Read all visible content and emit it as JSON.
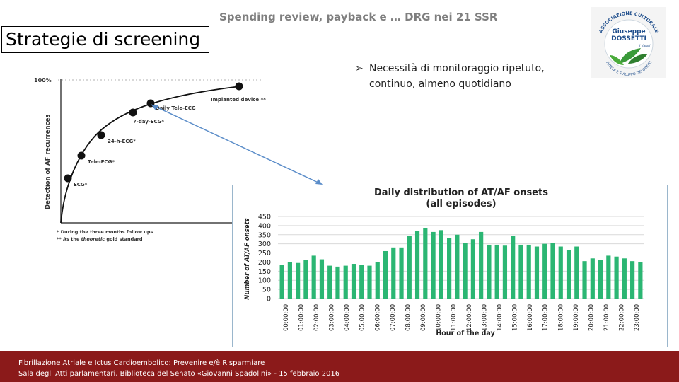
{
  "header": {
    "title": "Spending review, payback e … DRG nei 21 SSR"
  },
  "section": {
    "title": "Strategie di screening"
  },
  "logo": {
    "top_text": "ASSOCIAZIONE CULTURALE",
    "name1": "Giuseppe",
    "name2": "DOSSETTI",
    "bottom_text": "TUTELA E SVILUPPO DEI DIRITTI",
    "small": "I Valori"
  },
  "bullet": {
    "line1": "Necessità di monitoraggio ripetuto,",
    "line2": "continuo, almeno quotidiano"
  },
  "left_chart": {
    "y_top_label": "100%",
    "ylabel": "Detection of AF recurrences",
    "points": [
      {
        "label": "ECG*"
      },
      {
        "label": "Tele-ECG*"
      },
      {
        "label": "24-h-ECG*"
      },
      {
        "label": "7-day-ECG*"
      },
      {
        "label": "Daily Tele-ECG"
      },
      {
        "label": "Implanted device **"
      }
    ],
    "note1": "* During the three months follow ups",
    "note2_pre": "** As the ",
    "note2_em": "theoretic",
    "note2_post": " gold standard"
  },
  "chart_data": {
    "type": "bar",
    "title_line1": "Daily distribution of AT/AF onsets",
    "title_line2": "(all episodes)",
    "xlabel": "Hour of the day",
    "ylabel": "Number of AT/AF onsets",
    "ylim": [
      0,
      450
    ],
    "yticks": [
      0,
      50,
      100,
      150,
      200,
      250,
      300,
      350,
      400,
      450
    ],
    "grid": true,
    "color": "#2bb673",
    "tick_labels": [
      "00:00:00",
      "01:00:00",
      "02:00:00",
      "03:00:00",
      "04:00:00",
      "05:00:00",
      "06:00:00",
      "07:00:00",
      "08:00:00",
      "09:00:00",
      "10:00:00",
      "11:00:00",
      "12:00:00",
      "13:00:00",
      "14:00:00",
      "15:00:00",
      "16:00:00",
      "17:00:00",
      "18:00:00",
      "19:00:00",
      "20:00:00",
      "21:00:00",
      "22:00:00",
      "23:00:00"
    ],
    "values": [
      185,
      200,
      195,
      210,
      235,
      215,
      180,
      175,
      180,
      190,
      185,
      180,
      200,
      260,
      280,
      280,
      345,
      370,
      385,
      365,
      375,
      330,
      350,
      305,
      325,
      365,
      295,
      295,
      290,
      345,
      295,
      295,
      285,
      300,
      305,
      285,
      265,
      285,
      205,
      220,
      210,
      235,
      230,
      220,
      205,
      200
    ]
  },
  "footer": {
    "line1": "Fibrillazione Atriale e Ictus Cardioembolico: Prevenire e/è Risparmiare",
    "line2": "Sala degli Atti parlamentari, Biblioteca del Senato «Giovanni Spadolini» - 15 febbraio 2016"
  }
}
